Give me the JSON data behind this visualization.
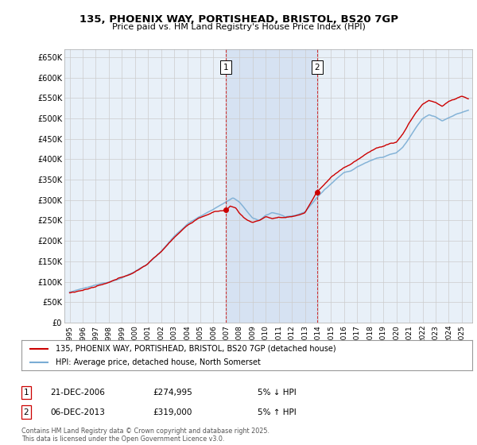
{
  "title": "135, PHOENIX WAY, PORTISHEAD, BRISTOL, BS20 7GP",
  "subtitle": "Price paid vs. HM Land Registry's House Price Index (HPI)",
  "ylim": [
    0,
    670000
  ],
  "yticks": [
    0,
    50000,
    100000,
    150000,
    200000,
    250000,
    300000,
    350000,
    400000,
    450000,
    500000,
    550000,
    600000,
    650000
  ],
  "ytick_labels": [
    "£0",
    "£50K",
    "£100K",
    "£150K",
    "£200K",
    "£250K",
    "£300K",
    "£350K",
    "£400K",
    "£450K",
    "£500K",
    "£550K",
    "£600K",
    "£650K"
  ],
  "hpi_color": "#7aadd4",
  "price_color": "#cc0000",
  "grid_color": "#cccccc",
  "bg_color": "#ffffff",
  "plot_bg_color": "#e8f0f8",
  "shade_color": "#c8d8ee",
  "legend_label_price": "135, PHOENIX WAY, PORTISHEAD, BRISTOL, BS20 7GP (detached house)",
  "legend_label_hpi": "HPI: Average price, detached house, North Somerset",
  "event1_x": 2006.97,
  "event2_x": 2013.92,
  "footer": "Contains HM Land Registry data © Crown copyright and database right 2025.\nThis data is licensed under the Open Government Licence v3.0.",
  "table_rows": [
    {
      "num": "1",
      "date": "21-DEC-2006",
      "price": "£274,995",
      "note": "5% ↓ HPI"
    },
    {
      "num": "2",
      "date": "06-DEC-2013",
      "price": "£319,000",
      "note": "5% ↑ HPI"
    }
  ],
  "xlim_left": 1994.6,
  "xlim_right": 2025.8
}
